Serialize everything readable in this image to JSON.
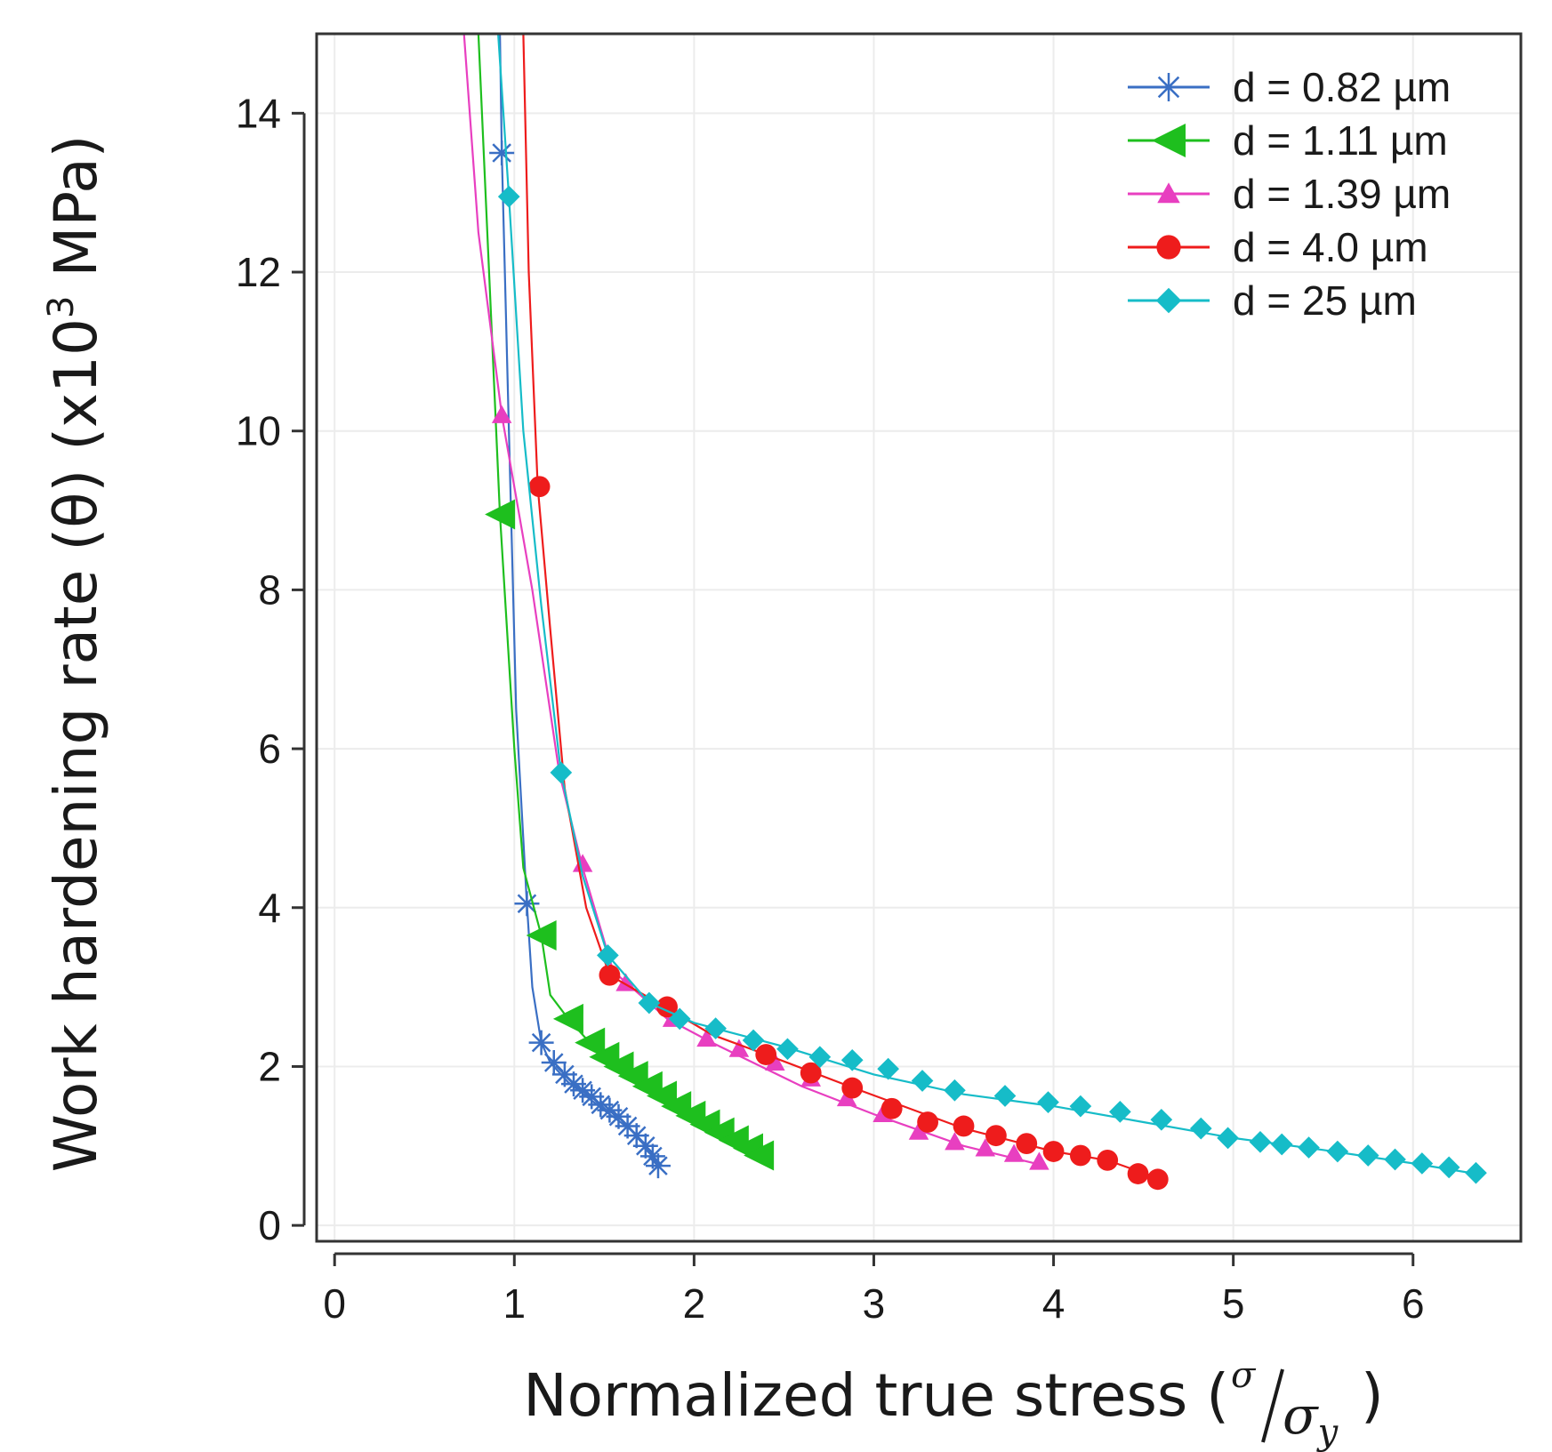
{
  "chart_data": {
    "type": "line",
    "title": "",
    "xlabel": "Normalized true stress (",
    "xlabel_fraction": {
      "numerator": "σ",
      "denominator": "σ",
      "subscript": "y",
      "close": ")"
    },
    "ylabel": "Work hardening rate (θ) (x10",
    "ylabel_superscript": "3",
    "ylabel_suffix": " MPa)",
    "xlim": [
      -0.1,
      6.6
    ],
    "ylim": [
      -0.2,
      15
    ],
    "xticks": [
      0,
      1,
      2,
      3,
      4,
      5,
      6
    ],
    "yticks": [
      0,
      2,
      4,
      6,
      8,
      10,
      12,
      14
    ],
    "xtick_labels": [
      "0",
      "1",
      "2",
      "3",
      "4",
      "5",
      "6"
    ],
    "ytick_labels": [
      "0",
      "2",
      "4",
      "6",
      "8",
      "10",
      "12",
      "14"
    ],
    "grid": true,
    "legend_position": "top-right",
    "series": [
      {
        "name": "d = 0.82 µm",
        "color": "#3a6fc4",
        "marker": "asterisk",
        "line": [
          [
            0.92,
            15.0
          ],
          [
            0.93,
            13.5
          ],
          [
            0.97,
            10.0
          ],
          [
            1.01,
            6.5
          ],
          [
            1.07,
            4.05
          ],
          [
            1.1,
            3.0
          ],
          [
            1.15,
            2.3
          ],
          [
            1.2,
            2.05
          ],
          [
            1.3,
            1.8
          ],
          [
            1.5,
            1.45
          ],
          [
            1.65,
            1.2
          ],
          [
            1.75,
            0.95
          ],
          [
            1.8,
            0.75
          ]
        ],
        "points": [
          [
            0.93,
            13.5
          ],
          [
            1.07,
            4.05
          ],
          [
            1.15,
            2.3
          ],
          [
            1.22,
            2.05
          ],
          [
            1.28,
            1.9
          ],
          [
            1.33,
            1.78
          ],
          [
            1.38,
            1.7
          ],
          [
            1.43,
            1.62
          ],
          [
            1.48,
            1.52
          ],
          [
            1.53,
            1.45
          ],
          [
            1.58,
            1.37
          ],
          [
            1.63,
            1.25
          ],
          [
            1.68,
            1.13
          ],
          [
            1.73,
            1.0
          ],
          [
            1.77,
            0.87
          ],
          [
            1.8,
            0.75
          ]
        ]
      },
      {
        "name": "d = 1.11 µm",
        "color": "#1ebf1e",
        "marker": "triangle-left",
        "line": [
          [
            0.8,
            15.0
          ],
          [
            0.92,
            8.95
          ],
          [
            1.0,
            6.0
          ],
          [
            1.05,
            4.5
          ],
          [
            1.15,
            3.65
          ],
          [
            1.2,
            2.9
          ],
          [
            1.3,
            2.6
          ],
          [
            1.5,
            2.1
          ],
          [
            1.8,
            1.6
          ],
          [
            2.1,
            1.2
          ],
          [
            2.35,
            0.85
          ]
        ],
        "points": [
          [
            0.92,
            8.95
          ],
          [
            1.15,
            3.65
          ],
          [
            1.3,
            2.6
          ],
          [
            1.42,
            2.3
          ],
          [
            1.5,
            2.12
          ],
          [
            1.58,
            2.0
          ],
          [
            1.66,
            1.88
          ],
          [
            1.74,
            1.75
          ],
          [
            1.82,
            1.63
          ],
          [
            1.9,
            1.5
          ],
          [
            1.98,
            1.38
          ],
          [
            2.06,
            1.27
          ],
          [
            2.14,
            1.17
          ],
          [
            2.22,
            1.07
          ],
          [
            2.3,
            0.97
          ],
          [
            2.36,
            0.88
          ]
        ]
      },
      {
        "name": "d = 1.39 µm",
        "color": "#e83fc0",
        "marker": "triangle-up",
        "line": [
          [
            0.72,
            15.0
          ],
          [
            0.8,
            12.5
          ],
          [
            0.93,
            10.2
          ],
          [
            1.1,
            8.0
          ],
          [
            1.25,
            5.7
          ],
          [
            1.38,
            4.5
          ],
          [
            1.55,
            3.2
          ],
          [
            1.65,
            3.0
          ],
          [
            1.85,
            2.6
          ],
          [
            2.1,
            2.3
          ],
          [
            2.6,
            1.75
          ],
          [
            3.0,
            1.4
          ],
          [
            3.5,
            1.0
          ],
          [
            3.95,
            0.75
          ]
        ],
        "points": [
          [
            0.93,
            10.2
          ],
          [
            1.38,
            4.55
          ],
          [
            1.62,
            3.05
          ],
          [
            1.88,
            2.6
          ],
          [
            2.07,
            2.35
          ],
          [
            2.25,
            2.22
          ],
          [
            2.45,
            2.05
          ],
          [
            2.65,
            1.85
          ],
          [
            2.85,
            1.6
          ],
          [
            3.05,
            1.4
          ],
          [
            3.25,
            1.18
          ],
          [
            3.45,
            1.05
          ],
          [
            3.62,
            0.97
          ],
          [
            3.78,
            0.9
          ],
          [
            3.92,
            0.8
          ]
        ]
      },
      {
        "name": "d = 4.0 µm",
        "color": "#ee1c1c",
        "marker": "circle",
        "line": [
          [
            1.05,
            15.0
          ],
          [
            1.08,
            12.0
          ],
          [
            1.13,
            9.3
          ],
          [
            1.2,
            7.5
          ],
          [
            1.28,
            5.5
          ],
          [
            1.4,
            4.0
          ],
          [
            1.53,
            3.15
          ],
          [
            1.8,
            2.8
          ],
          [
            2.1,
            2.4
          ],
          [
            2.4,
            2.15
          ],
          [
            2.9,
            1.72
          ],
          [
            3.5,
            1.22
          ],
          [
            4.0,
            0.93
          ],
          [
            4.3,
            0.82
          ],
          [
            4.6,
            0.58
          ]
        ],
        "points": [
          [
            1.14,
            9.3
          ],
          [
            1.53,
            3.15
          ],
          [
            1.85,
            2.75
          ],
          [
            2.4,
            2.15
          ],
          [
            2.65,
            1.92
          ],
          [
            2.88,
            1.73
          ],
          [
            3.1,
            1.47
          ],
          [
            3.3,
            1.3
          ],
          [
            3.5,
            1.25
          ],
          [
            3.68,
            1.13
          ],
          [
            3.85,
            1.03
          ],
          [
            4.0,
            0.93
          ],
          [
            4.15,
            0.88
          ],
          [
            4.3,
            0.82
          ],
          [
            4.47,
            0.65
          ],
          [
            4.58,
            0.58
          ]
        ]
      },
      {
        "name": "d = 25 µm",
        "color": "#16bcc8",
        "marker": "diamond",
        "line": [
          [
            0.91,
            15.0
          ],
          [
            0.97,
            12.95
          ],
          [
            1.05,
            10.0
          ],
          [
            1.15,
            7.8
          ],
          [
            1.26,
            5.7
          ],
          [
            1.38,
            4.4
          ],
          [
            1.52,
            3.4
          ],
          [
            1.75,
            2.8
          ],
          [
            2.0,
            2.55
          ],
          [
            2.5,
            2.25
          ],
          [
            3.0,
            1.9
          ],
          [
            3.5,
            1.65
          ],
          [
            4.0,
            1.5
          ],
          [
            4.5,
            1.3
          ],
          [
            5.0,
            1.1
          ],
          [
            5.5,
            0.95
          ],
          [
            6.0,
            0.78
          ],
          [
            6.35,
            0.65
          ]
        ],
        "points": [
          [
            0.97,
            12.95
          ],
          [
            1.26,
            5.7
          ],
          [
            1.52,
            3.4
          ],
          [
            1.75,
            2.8
          ],
          [
            1.92,
            2.6
          ],
          [
            2.12,
            2.48
          ],
          [
            2.33,
            2.33
          ],
          [
            2.52,
            2.22
          ],
          [
            2.7,
            2.12
          ],
          [
            2.88,
            2.08
          ],
          [
            3.08,
            1.97
          ],
          [
            3.27,
            1.82
          ],
          [
            3.45,
            1.7
          ],
          [
            3.73,
            1.63
          ],
          [
            3.97,
            1.55
          ],
          [
            4.15,
            1.5
          ],
          [
            4.37,
            1.43
          ],
          [
            4.6,
            1.33
          ],
          [
            4.82,
            1.22
          ],
          [
            4.97,
            1.1
          ],
          [
            5.15,
            1.05
          ],
          [
            5.27,
            1.02
          ],
          [
            5.42,
            0.98
          ],
          [
            5.58,
            0.93
          ],
          [
            5.75,
            0.88
          ],
          [
            5.9,
            0.83
          ],
          [
            6.05,
            0.78
          ],
          [
            6.2,
            0.73
          ],
          [
            6.35,
            0.66
          ]
        ]
      }
    ]
  }
}
